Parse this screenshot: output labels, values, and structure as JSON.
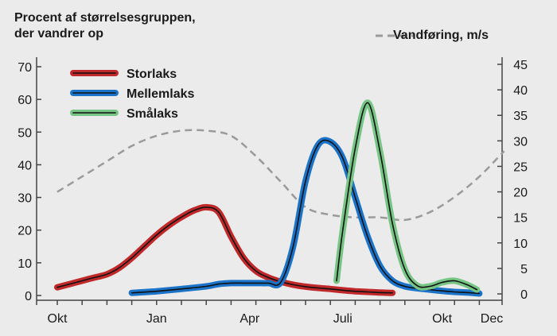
{
  "chart_data": {
    "type": "line",
    "title_line1": "Procent af størrelsesgruppen,",
    "title_line2": "der vandrer op",
    "y2label": "Vandføring, m/s",
    "x_ticks": [
      "Okt",
      "Jan",
      "Apr",
      "Juli",
      "Okt",
      "Dec"
    ],
    "ylim": [
      0,
      70
    ],
    "y_ticks": [
      0,
      10,
      20,
      30,
      40,
      50,
      60,
      70
    ],
    "y2lim": [
      0,
      45
    ],
    "y2_ticks": [
      0,
      5,
      10,
      15,
      20,
      25,
      30,
      35,
      40,
      45
    ],
    "grid": false,
    "legend_position": "top-left",
    "series": [
      {
        "name": "Storlaks",
        "color": "#c0282a",
        "halo": "#c0282a",
        "x": [
          0,
          0.5,
          1,
          1.5,
          2,
          2.5,
          3,
          3.5,
          4,
          4.5,
          5,
          5.5,
          6,
          6.5,
          7,
          7.5,
          8,
          8.5,
          9,
          9.5,
          10,
          10.5,
          11,
          11.5,
          12,
          12.5,
          13,
          13.5
        ],
        "values": [
          2.5,
          3.5,
          4.5,
          5.5,
          6.5,
          8.5,
          11.5,
          15,
          18.5,
          21.5,
          24,
          26,
          27,
          25.5,
          18,
          11.5,
          7.5,
          5.5,
          4.2,
          3.3,
          2.7,
          2.3,
          2,
          1.6,
          1.3,
          1.1,
          0.9,
          0.8
        ]
      },
      {
        "name": "Mellemlaks",
        "color": "#1a73c9",
        "halo": "#1a73c9",
        "x": [
          3,
          4,
          5,
          6,
          6.5,
          7,
          7.5,
          8,
          8.5,
          9,
          9.5,
          10,
          10.5,
          11,
          11.5,
          12,
          12.5,
          13,
          13.5,
          14,
          14.5,
          15,
          15.5,
          16,
          16.5,
          17
        ],
        "values": [
          0.8,
          1.3,
          2,
          2.8,
          3.5,
          3.8,
          3.8,
          3.8,
          3.8,
          4,
          15,
          35,
          46,
          47,
          42,
          30,
          18,
          9,
          4.5,
          2.8,
          2.2,
          1.8,
          1.4,
          1.1,
          0.9,
          0.6
        ]
      },
      {
        "name": "Smålaks",
        "color": "#76c585",
        "halo": "#76c585",
        "x": [
          11.25,
          11.5,
          12,
          12.5,
          13,
          13.5,
          14,
          14.5,
          15,
          15.5,
          16,
          16.5,
          16.9
        ],
        "values": [
          4.5,
          20,
          45,
          59,
          44,
          22,
          8,
          3,
          2.8,
          4,
          4.5,
          3.3,
          1.8
        ]
      }
    ],
    "flow_series": {
      "name": "Vandføring, m/s",
      "color": "#9a9a9a",
      "x": [
        0,
        1,
        2,
        3,
        4,
        5,
        6,
        7,
        8,
        9,
        10,
        11,
        12,
        13,
        14,
        15,
        16,
        17,
        18
      ],
      "values": [
        20,
        23,
        26,
        29,
        31,
        32,
        32,
        31,
        27,
        22,
        17,
        15.5,
        15,
        15,
        14.5,
        16,
        19,
        23,
        28
      ]
    }
  }
}
